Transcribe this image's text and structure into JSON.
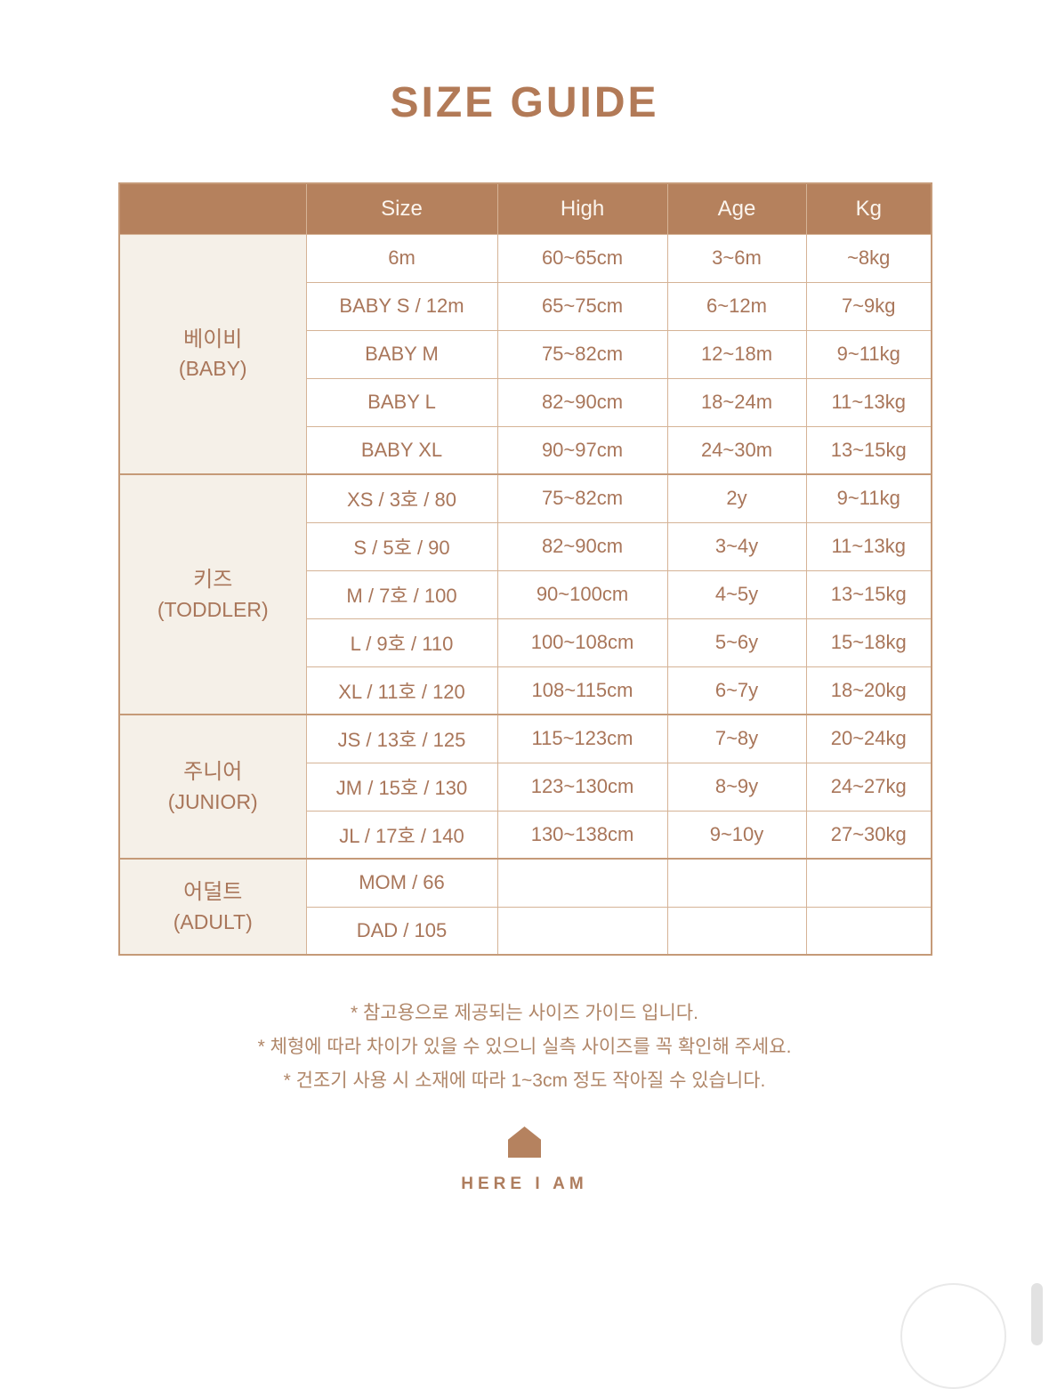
{
  "title": "SIZE GUIDE",
  "colors": {
    "accent_brown": "#b5815d",
    "title_brown": "#b27a57",
    "cell_text": "#a9765a",
    "grid_border": "#d5b396",
    "group_bg": "#f5f0e8",
    "note_text": "#b08668",
    "scrollbar_gray": "#e2e2e2"
  },
  "table": {
    "columns": [
      "",
      "Size",
      "High",
      "Age",
      "Kg"
    ],
    "groups": [
      {
        "label_ko": "베이비",
        "label_en": "(BABY)",
        "rows": [
          [
            "6m",
            "60~65cm",
            "3~6m",
            "~8kg"
          ],
          [
            "BABY S / 12m",
            "65~75cm",
            "6~12m",
            "7~9kg"
          ],
          [
            "BABY M",
            "75~82cm",
            "12~18m",
            "9~11kg"
          ],
          [
            "BABY L",
            "82~90cm",
            "18~24m",
            "11~13kg"
          ],
          [
            "BABY XL",
            "90~97cm",
            "24~30m",
            "13~15kg"
          ]
        ]
      },
      {
        "label_ko": "키즈",
        "label_en": "(TODDLER)",
        "rows": [
          [
            "XS / 3호 / 80",
            "75~82cm",
            "2y",
            "9~11kg"
          ],
          [
            "S / 5호 / 90",
            "82~90cm",
            "3~4y",
            "11~13kg"
          ],
          [
            "M / 7호 / 100",
            "90~100cm",
            "4~5y",
            "13~15kg"
          ],
          [
            "L / 9호 / 110",
            "100~108cm",
            "5~6y",
            "15~18kg"
          ],
          [
            "XL / 11호 / 120",
            "108~115cm",
            "6~7y",
            "18~20kg"
          ]
        ]
      },
      {
        "label_ko": "주니어",
        "label_en": "(JUNIOR)",
        "rows": [
          [
            "JS / 13호 / 125",
            "115~123cm",
            "7~8y",
            "20~24kg"
          ],
          [
            "JM / 15호 / 130",
            "123~130cm",
            "8~9y",
            "24~27kg"
          ],
          [
            "JL / 17호 / 140",
            "130~138cm",
            "9~10y",
            "27~30kg"
          ]
        ]
      },
      {
        "label_ko": "어덜트",
        "label_en": "(ADULT)",
        "rows": [
          [
            "MOM / 66",
            "",
            "",
            ""
          ],
          [
            "DAD / 105",
            "",
            "",
            ""
          ]
        ]
      }
    ]
  },
  "notes": [
    "* 참고용으로 제공되는 사이즈 가이드 입니다.",
    "* 체형에 따라 차이가 있을 수 있으니 실측 사이즈를 꼭 확인해 주세요.",
    "* 건조기 사용 시 소재에 따라 1~3cm 정도 작아질 수 있습니다."
  ],
  "brand": {
    "name": "HERE I AM",
    "icon": "house-icon"
  }
}
